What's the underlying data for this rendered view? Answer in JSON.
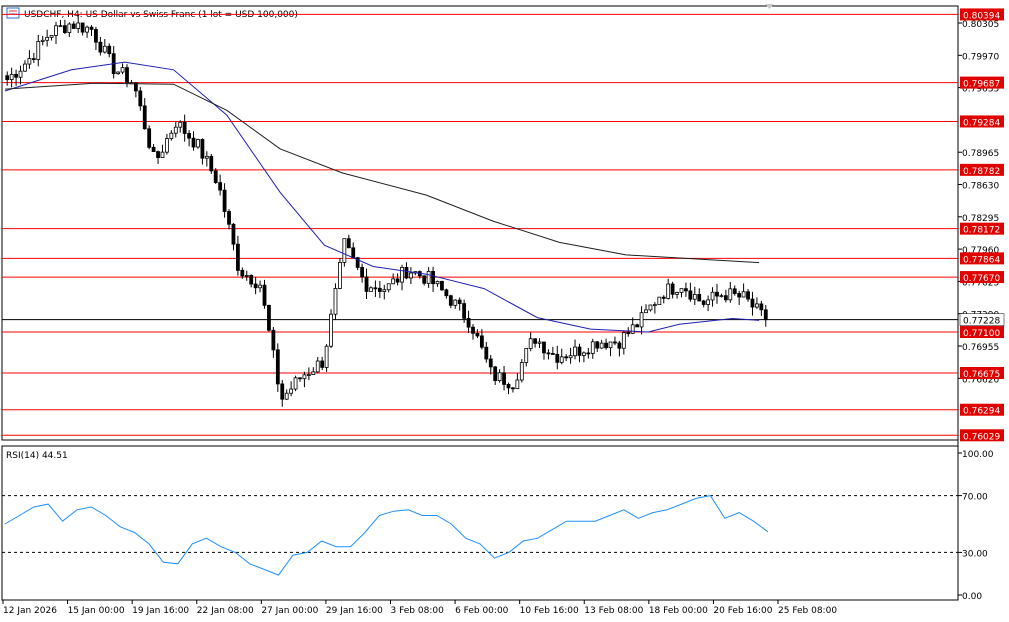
{
  "chart_data": {
    "type": "candlestick",
    "title": "USDCHF, H4:  US Dollar vs Swiss Franc (1 lot = USD 100,000)",
    "symbol": "USDCHF",
    "timeframe": "H4",
    "price_axis": {
      "labels": [
        "0.80305",
        "0.79970",
        "0.79635",
        "0.78965",
        "0.78630",
        "0.78295",
        "0.77960",
        "0.77625",
        "0.77290",
        "0.76955",
        "0.76620"
      ],
      "range": [
        0.7598,
        0.8044
      ]
    },
    "current_price": {
      "value": 0.77228,
      "label": "0.77228"
    },
    "level_lines": [
      {
        "value": 0.80394,
        "label": "0.80394"
      },
      {
        "value": 0.79687,
        "label": "0.79687"
      },
      {
        "value": 0.79284,
        "label": "0.79284"
      },
      {
        "value": 0.78782,
        "label": "0.78782"
      },
      {
        "value": 0.78172,
        "label": "0.78172"
      },
      {
        "value": 0.77864,
        "label": "0.77864"
      },
      {
        "value": 0.7767,
        "label": "0.77670"
      },
      {
        "value": 0.771,
        "label": "0.77100"
      },
      {
        "value": 0.76675,
        "label": "0.76675"
      },
      {
        "value": 0.76294,
        "label": "0.76294"
      },
      {
        "value": 0.76029,
        "label": "0.76029"
      }
    ],
    "x_labels": [
      "12 Jan 2026",
      "15 Jan 00:00",
      "19 Jan 16:00",
      "22 Jan 08:00",
      "27 Jan 00:00",
      "29 Jan 16:00",
      "3 Feb 08:00",
      "6 Feb 00:00",
      "10 Feb 16:00",
      "13 Feb 08:00",
      "18 Feb 00:00",
      "20 Feb 16:00",
      "25 Feb 08:00"
    ],
    "close_anchors": [
      {
        "date": "2026-01-12",
        "close": 0.7972
      },
      {
        "date": "2026-01-13",
        "close": 0.7992
      },
      {
        "date": "2026-01-14",
        "close": 0.802
      },
      {
        "date": "2026-01-15",
        "close": 0.803
      },
      {
        "date": "2026-01-16",
        "close": 0.8024
      },
      {
        "date": "2026-01-17",
        "close": 0.7985
      },
      {
        "date": "2026-01-19",
        "close": 0.7968
      },
      {
        "date": "2026-01-20",
        "close": 0.7885
      },
      {
        "date": "2026-01-21",
        "close": 0.7928
      },
      {
        "date": "2026-01-22",
        "close": 0.7905
      },
      {
        "date": "2026-01-23",
        "close": 0.7865
      },
      {
        "date": "2026-01-24",
        "close": 0.7775
      },
      {
        "date": "2026-01-26",
        "close": 0.776
      },
      {
        "date": "2026-01-27",
        "close": 0.764
      },
      {
        "date": "2026-01-28",
        "close": 0.7665
      },
      {
        "date": "2026-01-29",
        "close": 0.768
      },
      {
        "date": "2026-01-30",
        "close": 0.78
      },
      {
        "date": "2026-02-02",
        "close": 0.776
      },
      {
        "date": "2026-02-03",
        "close": 0.7755
      },
      {
        "date": "2026-02-04",
        "close": 0.7775
      },
      {
        "date": "2026-02-05",
        "close": 0.7765
      },
      {
        "date": "2026-02-06",
        "close": 0.7745
      },
      {
        "date": "2026-02-07",
        "close": 0.772
      },
      {
        "date": "2026-02-09",
        "close": 0.7665
      },
      {
        "date": "2026-02-10",
        "close": 0.7658
      },
      {
        "date": "2026-02-11",
        "close": 0.7705
      },
      {
        "date": "2026-02-12",
        "close": 0.7685
      },
      {
        "date": "2026-02-13",
        "close": 0.769
      },
      {
        "date": "2026-02-14",
        "close": 0.77
      },
      {
        "date": "2026-02-16",
        "close": 0.77
      },
      {
        "date": "2026-02-17",
        "close": 0.772
      },
      {
        "date": "2026-02-18",
        "close": 0.775
      },
      {
        "date": "2026-02-19",
        "close": 0.776
      },
      {
        "date": "2026-02-20",
        "close": 0.774
      },
      {
        "date": "2026-02-21",
        "close": 0.775
      },
      {
        "date": "2026-02-23",
        "close": 0.7745
      },
      {
        "date": "2026-02-24",
        "close": 0.7722
      }
    ],
    "moving_averages": [
      {
        "color": "#1f1fb4",
        "points": [
          [
            0,
            0.796
          ],
          [
            15,
            0.7982
          ],
          [
            27,
            0.799
          ],
          [
            38,
            0.7982
          ],
          [
            50,
            0.7935
          ],
          [
            62,
            0.7855
          ],
          [
            72,
            0.78
          ],
          [
            83,
            0.7778
          ],
          [
            95,
            0.777
          ],
          [
            108,
            0.7755
          ],
          [
            120,
            0.7725
          ],
          [
            132,
            0.7713
          ],
          [
            145,
            0.771
          ],
          [
            152,
            0.7718
          ],
          [
            164,
            0.7724
          ],
          [
            170,
            0.7722
          ]
        ]
      },
      {
        "color": "#202020",
        "points": [
          [
            0,
            0.7962
          ],
          [
            20,
            0.7968
          ],
          [
            38,
            0.7967
          ],
          [
            50,
            0.794
          ],
          [
            62,
            0.79
          ],
          [
            76,
            0.7875
          ],
          [
            95,
            0.7852
          ],
          [
            110,
            0.7825
          ],
          [
            125,
            0.7803
          ],
          [
            140,
            0.779
          ],
          [
            155,
            0.7786
          ],
          [
            170,
            0.7782
          ]
        ]
      }
    ],
    "rsi": {
      "label": "RSI(14) 44.51",
      "period": 14,
      "last_value": 44.51,
      "axis_labels": [
        "100.00",
        "70.00",
        "30.00",
        "0.00"
      ],
      "levels": [
        70,
        30
      ],
      "color": "#1e90ff",
      "values": [
        50,
        56,
        62,
        64,
        52,
        60,
        62,
        56,
        48,
        44,
        36,
        23,
        22,
        36,
        40,
        34,
        30,
        22,
        18,
        14,
        28,
        30,
        38,
        34,
        34,
        44,
        56,
        59,
        60,
        56,
        56,
        50,
        40,
        36,
        26,
        30,
        38,
        40,
        46,
        52,
        52,
        52,
        56,
        60,
        54,
        58,
        60,
        64,
        68,
        70,
        54,
        58,
        52,
        44.51
      ]
    },
    "grid": false,
    "background": "#ffffff",
    "bull_color": "#000000",
    "bear_color": "#000000",
    "level_line_color": "#ff0000"
  }
}
